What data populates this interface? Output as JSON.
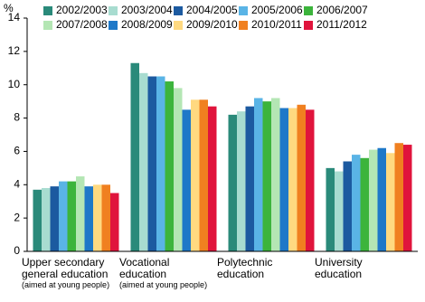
{
  "chart_data": {
    "type": "bar",
    "y_label": "%",
    "categories": [
      "Upper secondary general education",
      "Vocational education",
      "Polytechnic education",
      "University education"
    ],
    "category_notes": [
      "(aimed at young people)",
      "(aimed at young people)",
      null,
      null
    ],
    "series": [
      {
        "name": "2002/2003",
        "color": "#2a8a7a",
        "values": [
          3.7,
          11.3,
          8.2,
          5.0
        ]
      },
      {
        "name": "2003/2004",
        "color": "#a8dcd0",
        "values": [
          3.8,
          10.7,
          8.4,
          4.8
        ]
      },
      {
        "name": "2004/2005",
        "color": "#1c5aa0",
        "values": [
          3.9,
          10.5,
          8.7,
          5.4
        ]
      },
      {
        "name": "2005/2006",
        "color": "#5ab4e6",
        "values": [
          4.2,
          10.5,
          9.2,
          5.8
        ]
      },
      {
        "name": "2006/2007",
        "color": "#3cb43c",
        "values": [
          4.2,
          10.2,
          9.0,
          5.6
        ]
      },
      {
        "name": "2007/2008",
        "color": "#b4e6b4",
        "values": [
          4.5,
          9.8,
          9.2,
          6.1
        ]
      },
      {
        "name": "2008/2009",
        "color": "#1e78c8",
        "values": [
          3.9,
          8.5,
          8.6,
          6.2
        ]
      },
      {
        "name": "2009/2010",
        "color": "#ffd980",
        "values": [
          4.0,
          9.1,
          8.6,
          5.9
        ]
      },
      {
        "name": "2010/2011",
        "color": "#f08020",
        "values": [
          4.0,
          9.1,
          8.8,
          6.5
        ]
      },
      {
        "name": "2011/2012",
        "color": "#e0143c",
        "values": [
          3.5,
          8.7,
          8.5,
          6.4
        ]
      }
    ],
    "ylim": [
      0,
      14
    ],
    "yticks": [
      0,
      2,
      4,
      6,
      8,
      10,
      12,
      14
    ],
    "grid": false,
    "legend": "top"
  }
}
